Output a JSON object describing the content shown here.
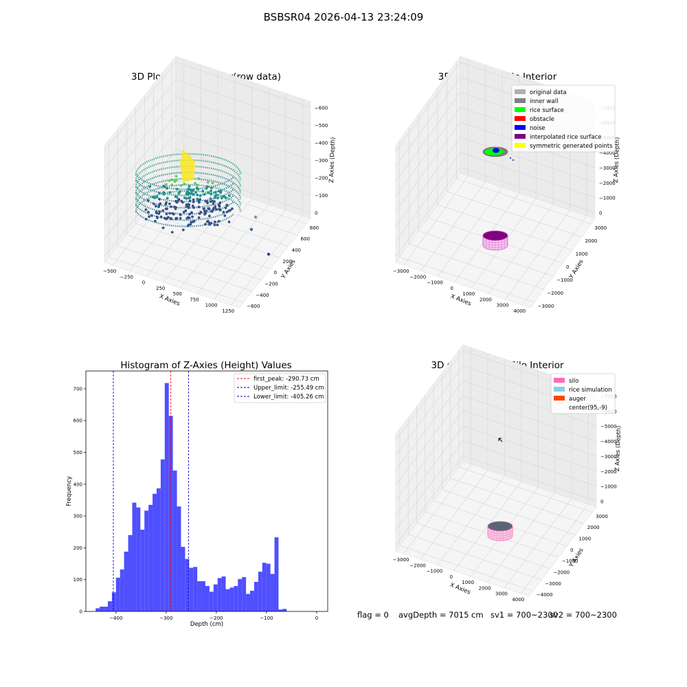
{
  "suptitle": "BSBSR04 2026-04-13 23:24:09",
  "status": {
    "flag": "flag = 0",
    "avgdepth": "avgDepth = 7015 cm",
    "sv1": "sv1 = 700~2300",
    "sv2": "sv2 = 700~2300"
  },
  "colors": {
    "histogram_bar": "#4f4fff",
    "first_peak": "#ff0000",
    "limits": "#0000cc",
    "pane_wall": "#f2f2f2",
    "grid": "#d8d8d8",
    "silo": "#ff69b4",
    "rice_simulation": "#87ceeb",
    "auger": "#ff4500"
  },
  "chart_data": [
    {
      "type": "scatter",
      "title": "3D Plot of Silo Interior(row data)",
      "xlabel": "X Axies",
      "ylabel": "Y Axies",
      "zlabel": "Z Axies (Depth)",
      "x_ticks": [
        "−500",
        "−250",
        "0",
        "250",
        "500",
        "750",
        "1000",
        "1250"
      ],
      "y_ticks": [
        "−600",
        "−400",
        "−200",
        "0",
        "200",
        "400",
        "600",
        "800"
      ],
      "z_ticks": [
        "0",
        "−100",
        "−200",
        "−300",
        "−400",
        "−500",
        "−600"
      ],
      "colormap": "viridis"
    },
    {
      "type": "scatter",
      "title": "3D classify of Silo Interior",
      "xlabel": "X Axies",
      "ylabel": "Y Axies",
      "zlabel": "Z Axies (Depth)",
      "x_ticks": [
        "−3000",
        "−2000",
        "−1000",
        "0",
        "1000",
        "2000",
        "3000",
        "4000"
      ],
      "y_ticks": [
        "−3000",
        "−2000",
        "−1000",
        "0",
        "1000",
        "2000",
        "3000"
      ],
      "z_ticks": [
        "0",
        "−1000",
        "−2000",
        "−3000",
        "−4000",
        "−5000",
        "−6000",
        "−7000"
      ],
      "legend_position": "top-right",
      "legend": [
        {
          "label": "original data",
          "color": "#b0b0b0"
        },
        {
          "label": "inner wall",
          "color": "#808080"
        },
        {
          "label": "rice surface",
          "color": "#00ff00"
        },
        {
          "label": "obstacle",
          "color": "#ff0000"
        },
        {
          "label": "noise",
          "color": "#0000ff"
        },
        {
          "label": "interpolated rice surface",
          "color": "#800080"
        },
        {
          "label": "symmetric generated points",
          "color": "#ffff00"
        }
      ]
    },
    {
      "type": "bar",
      "title": "Histogram of Z-Axies (Height) Values",
      "xlabel": "Depth (cm)",
      "ylabel": "Frequency",
      "xlim": [
        -460,
        22
      ],
      "ylim": [
        0,
        756
      ],
      "x_ticks": [
        -400,
        -300,
        -200,
        -100,
        0
      ],
      "x_tick_labels": [
        "−400",
        "−300",
        "−200",
        "−100",
        "0"
      ],
      "y_ticks": [
        0,
        100,
        200,
        300,
        400,
        500,
        600,
        700
      ],
      "bin_width": 8.1,
      "bins_start": -440.5,
      "values": [
        10,
        15,
        15,
        32,
        60,
        106,
        132,
        188,
        240,
        342,
        327,
        257,
        317,
        335,
        370,
        387,
        478,
        718,
        615,
        443,
        330,
        203,
        165,
        137,
        140,
        95,
        95,
        80,
        62,
        85,
        105,
        110,
        70,
        75,
        80,
        102,
        108,
        55,
        65,
        93,
        125,
        153,
        150,
        118,
        233,
        6,
        8
      ],
      "lines": [
        {
          "label": "first_peak: -290.73 cm",
          "x": -290.73,
          "color": "#ff0000"
        },
        {
          "label": "Upper_limit: -255.49 cm",
          "x": -255.49,
          "color": "#0000cc"
        },
        {
          "label": "Lower_limit: -405.26 cm",
          "x": -405.26,
          "color": "#0000cc"
        }
      ],
      "legend_position": "top-right"
    },
    {
      "type": "scatter",
      "title": "3D simulation of Silo Interior",
      "xlabel": "X Axies",
      "ylabel": "Y Axies",
      "zlabel": "Z Axies (Depth)",
      "x_ticks": [
        "−3000",
        "−2000",
        "−1000",
        "0",
        "1000",
        "2000",
        "3000",
        "4000"
      ],
      "y_ticks": [
        "−4000",
        "−3000",
        "−2000",
        "−1000",
        "0",
        "1000",
        "2000",
        "3000"
      ],
      "z_ticks": [
        "0",
        "−1000",
        "−2000",
        "−3000",
        "−4000",
        "−5000",
        "−6000",
        "−7000"
      ],
      "legend_position": "top-right",
      "legend": [
        {
          "label": "silo",
          "color": "#ff69b4"
        },
        {
          "label": "rice simulation",
          "color": "#87ceeb"
        },
        {
          "label": "auger",
          "color": "#ff4500"
        },
        {
          "label": "center(95,-9)",
          "color": ""
        }
      ]
    }
  ]
}
